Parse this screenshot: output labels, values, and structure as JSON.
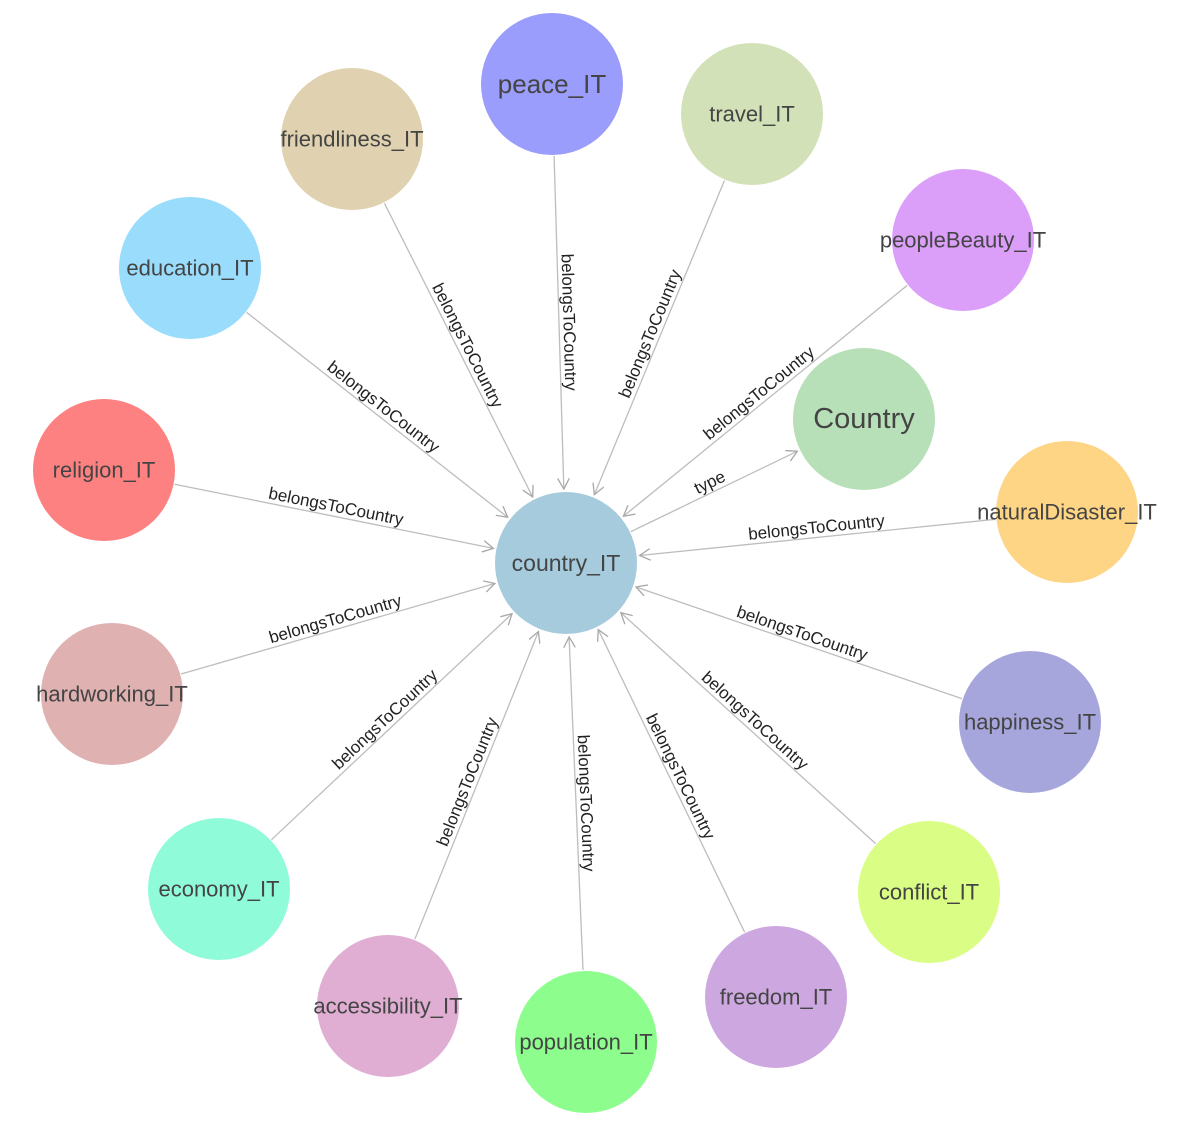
{
  "graph": {
    "center": "country_IT",
    "nodes": [
      {
        "id": "country_IT",
        "label": "country_IT",
        "color": "#a5cbdd"
      },
      {
        "id": "Country",
        "label": "Country",
        "color": "#b8e0b8"
      },
      {
        "id": "peace_IT",
        "label": "peace_IT",
        "color": "#9b9dfc"
      },
      {
        "id": "travel_IT",
        "label": "travel_IT",
        "color": "#d3e1b8"
      },
      {
        "id": "friendliness_IT",
        "label": "friendliness_IT",
        "color": "#e0d2b0"
      },
      {
        "id": "peopleBeauty_IT",
        "label": "peopleBeauty_IT",
        "color": "#db9ef9"
      },
      {
        "id": "education_IT",
        "label": "education_IT",
        "color": "#99dcfc"
      },
      {
        "id": "religion_IT",
        "label": "religion_IT",
        "color": "#fd8181"
      },
      {
        "id": "naturalDisaster_IT",
        "label": "naturalDisaster_IT",
        "color": "#fdd585"
      },
      {
        "id": "hardworking_IT",
        "label": "hardworking_IT",
        "color": "#dfb1b1"
      },
      {
        "id": "happiness_IT",
        "label": "happiness_IT",
        "color": "#a6a6dd"
      },
      {
        "id": "economy_IT",
        "label": "economy_IT",
        "color": "#8ffbd9"
      },
      {
        "id": "conflict_IT",
        "label": "conflict_IT",
        "color": "#d9fd85"
      },
      {
        "id": "accessibility_IT",
        "label": "accessibility_IT",
        "color": "#dfaed2"
      },
      {
        "id": "population_IT",
        "label": "population_IT",
        "color": "#8dfd8d"
      },
      {
        "id": "freedom_IT",
        "label": "freedom_IT",
        "color": "#cda8e0"
      }
    ],
    "edges": [
      {
        "from": "peace_IT",
        "to": "country_IT",
        "label": "belongsToCountry"
      },
      {
        "from": "travel_IT",
        "to": "country_IT",
        "label": "belongsToCountry"
      },
      {
        "from": "friendliness_IT",
        "to": "country_IT",
        "label": "belongsToCountry"
      },
      {
        "from": "peopleBeauty_IT",
        "to": "country_IT",
        "label": "belongsToCountry"
      },
      {
        "from": "education_IT",
        "to": "country_IT",
        "label": "belongsToCountry"
      },
      {
        "from": "country_IT",
        "to": "Country",
        "label": "type"
      },
      {
        "from": "religion_IT",
        "to": "country_IT",
        "label": "belongsToCountry"
      },
      {
        "from": "naturalDisaster_IT",
        "to": "country_IT",
        "label": "belongsToCountry"
      },
      {
        "from": "hardworking_IT",
        "to": "country_IT",
        "label": "belongsToCountry"
      },
      {
        "from": "happiness_IT",
        "to": "country_IT",
        "label": "belongsToCountry"
      },
      {
        "from": "economy_IT",
        "to": "country_IT",
        "label": "belongsToCountry"
      },
      {
        "from": "conflict_IT",
        "to": "country_IT",
        "label": "belongsToCountry"
      },
      {
        "from": "accessibility_IT",
        "to": "country_IT",
        "label": "belongsToCountry"
      },
      {
        "from": "population_IT",
        "to": "country_IT",
        "label": "belongsToCountry"
      },
      {
        "from": "freedom_IT",
        "to": "country_IT",
        "label": "belongsToCountry"
      }
    ]
  }
}
